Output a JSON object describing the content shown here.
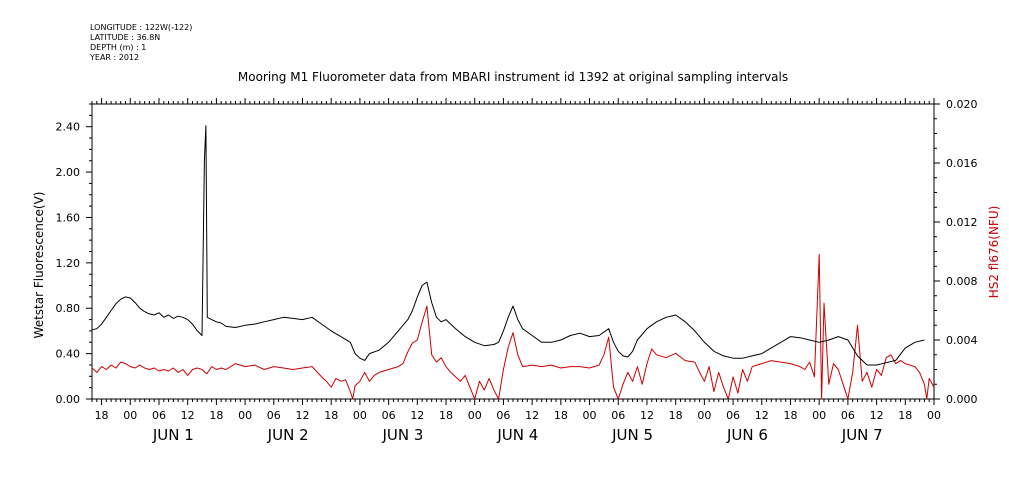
{
  "header": {
    "meta_lines": [
      "LONGITUDE : 122W(-122)",
      "LATITUDE : 36.8N",
      "DEPTH (m) : 1",
      "YEAR : 2012"
    ],
    "title": "Mooring M1 Fluorometer data from MBARI instrument id 1392 at original sampling intervals"
  },
  "chart_data": {
    "type": "line",
    "title": "Mooring M1 Fluorometer data from MBARI instrument id 1392 at original sampling intervals",
    "xlabel": "",
    "ylabel": "Wetstar Fluorescence(V)",
    "y2label": "HS2 fl676(NFU)",
    "xlim_hours_from_jun1_00": [
      -8,
      168
    ],
    "ylim": [
      0,
      2.6
    ],
    "y2lim": [
      0,
      0.02
    ],
    "y_ticks": [
      "0.00",
      "0.40",
      "0.80",
      "1.20",
      "1.60",
      "2.00",
      "2.40"
    ],
    "y2_ticks": [
      "0.000",
      "0.004",
      "0.008",
      "0.012",
      "0.016",
      "0.020"
    ],
    "hour_tick_labels": [
      "06",
      "12",
      "18",
      "00"
    ],
    "day_labels": [
      "JUN 1",
      "JUN 2",
      "JUN 3",
      "JUN 4",
      "JUN 5",
      "JUN 6",
      "JUN 7"
    ],
    "grid": false,
    "series": [
      {
        "name": "Wetstar Fluorescence(V)",
        "axis": "left",
        "color": "#000000",
        "points": [
          [
            -8,
            0.61
          ],
          [
            -7,
            0.62
          ],
          [
            -6,
            0.66
          ],
          [
            -5,
            0.72
          ],
          [
            -4,
            0.78
          ],
          [
            -3,
            0.84
          ],
          [
            -2,
            0.88
          ],
          [
            -1,
            0.9
          ],
          [
            0,
            0.89
          ],
          [
            1,
            0.85
          ],
          [
            2,
            0.8
          ],
          [
            3,
            0.77
          ],
          [
            4,
            0.75
          ],
          [
            5,
            0.74
          ],
          [
            6,
            0.76
          ],
          [
            7,
            0.72
          ],
          [
            8,
            0.74
          ],
          [
            9,
            0.71
          ],
          [
            10,
            0.73
          ],
          [
            11,
            0.72
          ],
          [
            12,
            0.7
          ],
          [
            13,
            0.66
          ],
          [
            14,
            0.6
          ],
          [
            15,
            0.56
          ],
          [
            15.5,
            2.1
          ],
          [
            15.8,
            2.41
          ],
          [
            16.1,
            0.72
          ],
          [
            17,
            0.7
          ],
          [
            18,
            0.68
          ],
          [
            19,
            0.67
          ],
          [
            20,
            0.64
          ],
          [
            22,
            0.63
          ],
          [
            24,
            0.65
          ],
          [
            26,
            0.66
          ],
          [
            28,
            0.68
          ],
          [
            30,
            0.7
          ],
          [
            32,
            0.72
          ],
          [
            34,
            0.71
          ],
          [
            36,
            0.7
          ],
          [
            38,
            0.72
          ],
          [
            40,
            0.66
          ],
          [
            42,
            0.6
          ],
          [
            44,
            0.55
          ],
          [
            46,
            0.5
          ],
          [
            47,
            0.4
          ],
          [
            48,
            0.36
          ],
          [
            49,
            0.34
          ],
          [
            50,
            0.4
          ],
          [
            52,
            0.43
          ],
          [
            54,
            0.5
          ],
          [
            56,
            0.6
          ],
          [
            58,
            0.7
          ],
          [
            59,
            0.78
          ],
          [
            60,
            0.9
          ],
          [
            61,
            1.0
          ],
          [
            62,
            1.03
          ],
          [
            63,
            0.85
          ],
          [
            64,
            0.72
          ],
          [
            65,
            0.68
          ],
          [
            66,
            0.7
          ],
          [
            68,
            0.62
          ],
          [
            70,
            0.55
          ],
          [
            72,
            0.5
          ],
          [
            74,
            0.47
          ],
          [
            76,
            0.48
          ],
          [
            77,
            0.5
          ],
          [
            78,
            0.6
          ],
          [
            79,
            0.72
          ],
          [
            80,
            0.82
          ],
          [
            81,
            0.7
          ],
          [
            82,
            0.62
          ],
          [
            84,
            0.56
          ],
          [
            86,
            0.5
          ],
          [
            88,
            0.5
          ],
          [
            90,
            0.52
          ],
          [
            92,
            0.56
          ],
          [
            94,
            0.58
          ],
          [
            96,
            0.55
          ],
          [
            98,
            0.56
          ],
          [
            100,
            0.62
          ],
          [
            101,
            0.5
          ],
          [
            102,
            0.42
          ],
          [
            103,
            0.38
          ],
          [
            104,
            0.37
          ],
          [
            105,
            0.42
          ],
          [
            106,
            0.52
          ],
          [
            108,
            0.62
          ],
          [
            110,
            0.68
          ],
          [
            112,
            0.72
          ],
          [
            114,
            0.74
          ],
          [
            116,
            0.68
          ],
          [
            118,
            0.6
          ],
          [
            120,
            0.5
          ],
          [
            122,
            0.42
          ],
          [
            124,
            0.38
          ],
          [
            126,
            0.36
          ],
          [
            128,
            0.36
          ],
          [
            130,
            0.38
          ],
          [
            132,
            0.4
          ],
          [
            134,
            0.45
          ],
          [
            136,
            0.5
          ],
          [
            138,
            0.55
          ],
          [
            140,
            0.54
          ],
          [
            142,
            0.52
          ],
          [
            144,
            0.5
          ],
          [
            146,
            0.52
          ],
          [
            148,
            0.55
          ],
          [
            150,
            0.52
          ],
          [
            152,
            0.38
          ],
          [
            154,
            0.3
          ],
          [
            156,
            0.3
          ],
          [
            158,
            0.32
          ],
          [
            160,
            0.34
          ],
          [
            162,
            0.45
          ],
          [
            164,
            0.5
          ],
          [
            166,
            0.52
          ]
        ]
      },
      {
        "name": "HS2 fl676(NFU)",
        "axis": "right",
        "color": "#cc0000",
        "points": [
          [
            -8,
            0.0021
          ],
          [
            -7,
            0.0018
          ],
          [
            -6,
            0.0022
          ],
          [
            -5,
            0.002
          ],
          [
            -4,
            0.0023
          ],
          [
            -3,
            0.0021
          ],
          [
            -2,
            0.0025
          ],
          [
            -1,
            0.0024
          ],
          [
            0,
            0.0022
          ],
          [
            1,
            0.0021
          ],
          [
            2,
            0.0023
          ],
          [
            3,
            0.0021
          ],
          [
            4,
            0.002
          ],
          [
            5,
            0.0021
          ],
          [
            6,
            0.0019
          ],
          [
            7,
            0.002
          ],
          [
            8,
            0.0019
          ],
          [
            9,
            0.0021
          ],
          [
            10,
            0.0018
          ],
          [
            11,
            0.002
          ],
          [
            12,
            0.0016
          ],
          [
            13,
            0.002
          ],
          [
            14,
            0.0021
          ],
          [
            15,
            0.002
          ],
          [
            16,
            0.0017
          ],
          [
            17,
            0.0022
          ],
          [
            18,
            0.002
          ],
          [
            19,
            0.0021
          ],
          [
            20,
            0.002
          ],
          [
            22,
            0.0024
          ],
          [
            24,
            0.0022
          ],
          [
            26,
            0.0023
          ],
          [
            28,
            0.002
          ],
          [
            30,
            0.0022
          ],
          [
            32,
            0.0021
          ],
          [
            34,
            0.002
          ],
          [
            36,
            0.0021
          ],
          [
            38,
            0.0022
          ],
          [
            40,
            0.0015
          ],
          [
            41,
            0.0012
          ],
          [
            42,
            0.0008
          ],
          [
            43,
            0.0014
          ],
          [
            44,
            0.0012
          ],
          [
            45,
            0.0013
          ],
          [
            46,
            0.0005
          ],
          [
            46.5,
            0.0
          ],
          [
            47,
            0.0009
          ],
          [
            48,
            0.0012
          ],
          [
            49,
            0.0018
          ],
          [
            50,
            0.0012
          ],
          [
            51,
            0.0016
          ],
          [
            52,
            0.0018
          ],
          [
            54,
            0.002
          ],
          [
            56,
            0.0022
          ],
          [
            57,
            0.0024
          ],
          [
            58,
            0.0032
          ],
          [
            59,
            0.0038
          ],
          [
            60,
            0.004
          ],
          [
            61,
            0.0052
          ],
          [
            62,
            0.0063
          ],
          [
            63,
            0.003
          ],
          [
            64,
            0.0025
          ],
          [
            65,
            0.0028
          ],
          [
            66,
            0.0022
          ],
          [
            67,
            0.0018
          ],
          [
            68,
            0.0015
          ],
          [
            69,
            0.0012
          ],
          [
            70,
            0.0016
          ],
          [
            71,
            0.0008
          ],
          [
            72,
            0.0
          ],
          [
            73,
            0.0012
          ],
          [
            74,
            0.0006
          ],
          [
            75,
            0.0014
          ],
          [
            76,
            0.0006
          ],
          [
            77,
            0.0
          ],
          [
            78,
            0.002
          ],
          [
            79,
            0.0035
          ],
          [
            80,
            0.0045
          ],
          [
            81,
            0.003
          ],
          [
            82,
            0.0022
          ],
          [
            84,
            0.0023
          ],
          [
            86,
            0.0022
          ],
          [
            88,
            0.0023
          ],
          [
            90,
            0.0021
          ],
          [
            92,
            0.0022
          ],
          [
            94,
            0.0022
          ],
          [
            96,
            0.0021
          ],
          [
            98,
            0.0023
          ],
          [
            99,
            0.003
          ],
          [
            100,
            0.0042
          ],
          [
            101,
            0.0008
          ],
          [
            102,
            0.0
          ],
          [
            103,
            0.001
          ],
          [
            104,
            0.0018
          ],
          [
            105,
            0.0012
          ],
          [
            106,
            0.0022
          ],
          [
            107,
            0.001
          ],
          [
            108,
            0.0024
          ],
          [
            109,
            0.0034
          ],
          [
            110,
            0.003
          ],
          [
            112,
            0.0028
          ],
          [
            114,
            0.0031
          ],
          [
            116,
            0.0026
          ],
          [
            118,
            0.0025
          ],
          [
            119,
            0.0018
          ],
          [
            120,
            0.0012
          ],
          [
            121,
            0.0022
          ],
          [
            122,
            0.0005
          ],
          [
            123,
            0.0018
          ],
          [
            124,
            0.0008
          ],
          [
            125,
            0.0
          ],
          [
            126,
            0.0015
          ],
          [
            127,
            0.0004
          ],
          [
            128,
            0.002
          ],
          [
            129,
            0.0012
          ],
          [
            130,
            0.0022
          ],
          [
            132,
            0.0024
          ],
          [
            134,
            0.0026
          ],
          [
            136,
            0.0025
          ],
          [
            138,
            0.0024
          ],
          [
            140,
            0.0022
          ],
          [
            141,
            0.002
          ],
          [
            142,
            0.0025
          ],
          [
            143,
            0.0015
          ],
          [
            144,
            0.0098
          ],
          [
            144.5,
            0.0
          ],
          [
            145,
            0.0065
          ],
          [
            146,
            0.001
          ],
          [
            147,
            0.0024
          ],
          [
            148,
            0.002
          ],
          [
            149,
            0.001
          ],
          [
            150,
            0.0
          ],
          [
            151,
            0.0018
          ],
          [
            152,
            0.005
          ],
          [
            153,
            0.0012
          ],
          [
            154,
            0.0018
          ],
          [
            155,
            0.0008
          ],
          [
            156,
            0.002
          ],
          [
            157,
            0.0016
          ],
          [
            158,
            0.0028
          ],
          [
            159,
            0.003
          ],
          [
            160,
            0.0024
          ],
          [
            161,
            0.0026
          ],
          [
            162,
            0.0024
          ],
          [
            163,
            0.0023
          ],
          [
            164,
            0.0022
          ],
          [
            165,
            0.0018
          ],
          [
            166,
            0.001
          ],
          [
            166.5,
            0.0
          ],
          [
            167,
            0.0014
          ],
          [
            168,
            0.0008
          ]
        ]
      }
    ]
  }
}
